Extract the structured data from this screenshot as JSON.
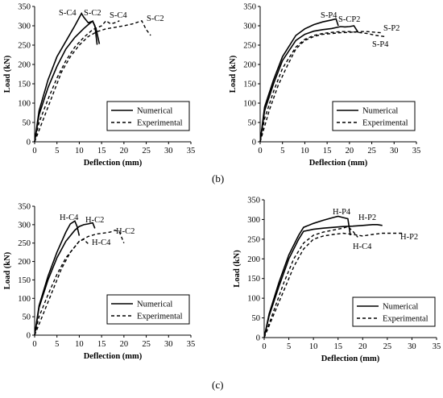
{
  "captions": {
    "b": "(b)",
    "c": "(c)"
  },
  "chart_data": [
    {
      "type": "line",
      "xlabel": "Deflection (mm)",
      "ylabel": "Load (kN)",
      "xlim": [
        0,
        35
      ],
      "ylim": [
        0,
        350
      ],
      "xticks": [
        "0",
        "5",
        "10",
        "15",
        "20",
        "25",
        "30",
        "35"
      ],
      "yticks": [
        "0",
        "50",
        "100",
        "150",
        "200",
        "250",
        "300",
        "350"
      ],
      "legend": {
        "position": "bottom-right",
        "entries": [
          "Numerical",
          "Experimental"
        ]
      },
      "series": [
        {
          "style": "numerical",
          "x": [
            0,
            1,
            3,
            5,
            7,
            9,
            10.5,
            11,
            12,
            13,
            13.8,
            14.5
          ],
          "y": [
            0,
            80,
            160,
            220,
            260,
            300,
            332,
            322,
            308,
            312,
            290,
            253
          ]
        },
        {
          "style": "numerical",
          "x": [
            0,
            1,
            3,
            5,
            7,
            9,
            11,
            12,
            13,
            13.5,
            14
          ],
          "y": [
            0,
            70,
            140,
            195,
            240,
            270,
            293,
            303,
            312,
            300,
            251
          ]
        },
        {
          "style": "experimental",
          "x": [
            0,
            1,
            3,
            5,
            7,
            9,
            11,
            13,
            15,
            16,
            17,
            18,
            19
          ],
          "y": [
            0,
            50,
            110,
            165,
            210,
            245,
            270,
            290,
            300,
            313,
            305,
            308,
            313
          ]
        },
        {
          "style": "experimental",
          "x": [
            0,
            2,
            4,
            6,
            8,
            10,
            12,
            14,
            16,
            18,
            20,
            22,
            24,
            25,
            26
          ],
          "y": [
            0,
            60,
            120,
            180,
            220,
            250,
            272,
            285,
            292,
            296,
            300,
            305,
            313,
            290,
            275
          ]
        }
      ],
      "annotations": [
        "S-C4",
        "S-C2",
        "S-C4",
        "S-C2"
      ]
    },
    {
      "type": "line",
      "xlabel": "Deflection (mm)",
      "ylabel": "Load (kN)",
      "xlim": [
        0,
        35
      ],
      "ylim": [
        0,
        350
      ],
      "xticks": [
        "0",
        "5",
        "10",
        "15",
        "20",
        "25",
        "30",
        "35"
      ],
      "yticks": [
        "0",
        "50",
        "100",
        "150",
        "200",
        "250",
        "300",
        "350"
      ],
      "legend": {
        "position": "bottom-right",
        "entries": [
          "Numerical",
          "Experimental"
        ]
      },
      "series": [
        {
          "style": "numerical",
          "x": [
            0,
            1,
            3,
            5,
            8,
            10,
            12,
            14,
            16,
            17,
            17.5
          ],
          "y": [
            0,
            90,
            160,
            220,
            275,
            292,
            303,
            310,
            315,
            318,
            300
          ]
        },
        {
          "style": "numerical",
          "x": [
            0,
            1,
            3,
            5,
            8,
            10,
            12,
            14,
            16,
            18,
            19,
            20,
            21,
            22
          ],
          "y": [
            0,
            80,
            150,
            210,
            262,
            278,
            286,
            290,
            293,
            298,
            297,
            298,
            300,
            282
          ]
        },
        {
          "style": "experimental",
          "x": [
            0,
            1,
            3,
            5,
            8,
            10,
            12,
            14,
            16,
            18,
            20,
            22,
            24,
            26,
            28
          ],
          "y": [
            0,
            60,
            130,
            190,
            245,
            265,
            275,
            280,
            283,
            285,
            285,
            283,
            280,
            275,
            272
          ]
        },
        {
          "style": "experimental",
          "x": [
            0,
            2,
            4,
            6,
            8,
            10,
            12,
            14,
            16,
            18,
            20,
            22,
            24,
            27
          ],
          "y": [
            0,
            80,
            145,
            195,
            240,
            262,
            272,
            278,
            280,
            282,
            283,
            285,
            285,
            282
          ]
        }
      ],
      "annotations": [
        "S-P4",
        "S-CP2",
        "S-P2",
        "S-P4"
      ]
    },
    {
      "type": "line",
      "xlabel": "Deflection (mm)",
      "ylabel": "Load (kN)",
      "xlim": [
        0,
        35
      ],
      "ylim": [
        0,
        350
      ],
      "xticks": [
        "0",
        "5",
        "10",
        "15",
        "20",
        "25",
        "30",
        "35"
      ],
      "yticks": [
        "0",
        "50",
        "100",
        "150",
        "200",
        "250",
        "300",
        "350"
      ],
      "legend": {
        "position": "bottom-right",
        "entries": [
          "Numerical",
          "Experimental"
        ]
      },
      "series": [
        {
          "style": "numerical",
          "x": [
            0,
            1,
            3,
            5,
            7,
            8,
            9,
            9.5,
            10
          ],
          "y": [
            0,
            80,
            160,
            225,
            280,
            302,
            310,
            295,
            270
          ]
        },
        {
          "style": "numerical",
          "x": [
            0,
            1,
            3,
            5,
            7,
            9,
            10,
            11,
            12,
            13,
            13.5
          ],
          "y": [
            0,
            75,
            150,
            210,
            255,
            285,
            295,
            300,
            302,
            305,
            290
          ]
        },
        {
          "style": "experimental",
          "x": [
            0,
            1,
            3,
            5,
            7,
            9,
            10,
            11,
            12
          ],
          "y": [
            0,
            50,
            110,
            165,
            210,
            240,
            255,
            260,
            248
          ]
        },
        {
          "style": "experimental",
          "x": [
            0,
            2,
            4,
            6,
            8,
            10,
            12,
            14,
            16,
            17,
            18,
            19,
            20
          ],
          "y": [
            0,
            60,
            120,
            180,
            225,
            255,
            268,
            275,
            278,
            280,
            285,
            280,
            250
          ]
        }
      ],
      "annotations": [
        "H-C4",
        "H-C2",
        "H-C2",
        "H-C4"
      ]
    },
    {
      "type": "line",
      "xlabel": "Deflection (mm)",
      "ylabel": "Load (kN)",
      "xlim": [
        0,
        35
      ],
      "ylim": [
        0,
        350
      ],
      "xticks": [
        "0",
        "5",
        "10",
        "15",
        "20",
        "25",
        "30",
        "35"
      ],
      "yticks": [
        "0",
        "50",
        "100",
        "150",
        "200",
        "250",
        "300",
        "350"
      ],
      "legend": {
        "position": "bottom-right",
        "entries": [
          "Numerical",
          "Experimental"
        ]
      },
      "series": [
        {
          "style": "numerical",
          "x": [
            0,
            1,
            3,
            5,
            7,
            8,
            10,
            12,
            14,
            15,
            16,
            17,
            17.5
          ],
          "y": [
            0,
            60,
            140,
            210,
            260,
            280,
            290,
            298,
            305,
            308,
            305,
            302,
            260
          ]
        },
        {
          "style": "numerical",
          "x": [
            0,
            1,
            3,
            5,
            7,
            8,
            10,
            12,
            14,
            16,
            18,
            20,
            22,
            23,
            24
          ],
          "y": [
            0,
            55,
            130,
            200,
            250,
            270,
            275,
            278,
            280,
            282,
            283,
            285,
            287,
            287,
            285
          ]
        },
        {
          "style": "experimental",
          "x": [
            0,
            2,
            4,
            6,
            8,
            10,
            12,
            14,
            16,
            17,
            18,
            19
          ],
          "y": [
            0,
            70,
            140,
            200,
            240,
            260,
            268,
            273,
            278,
            282,
            270,
            255
          ]
        },
        {
          "style": "experimental",
          "x": [
            0,
            2,
            4,
            6,
            8,
            10,
            12,
            14,
            16,
            18,
            20,
            22,
            24,
            26,
            28
          ],
          "y": [
            0,
            60,
            120,
            180,
            225,
            250,
            258,
            262,
            265,
            262,
            258,
            262,
            265,
            265,
            265
          ]
        }
      ],
      "annotations": [
        "H-P4",
        "H-P2",
        "H-C4",
        "H-P2"
      ]
    }
  ]
}
